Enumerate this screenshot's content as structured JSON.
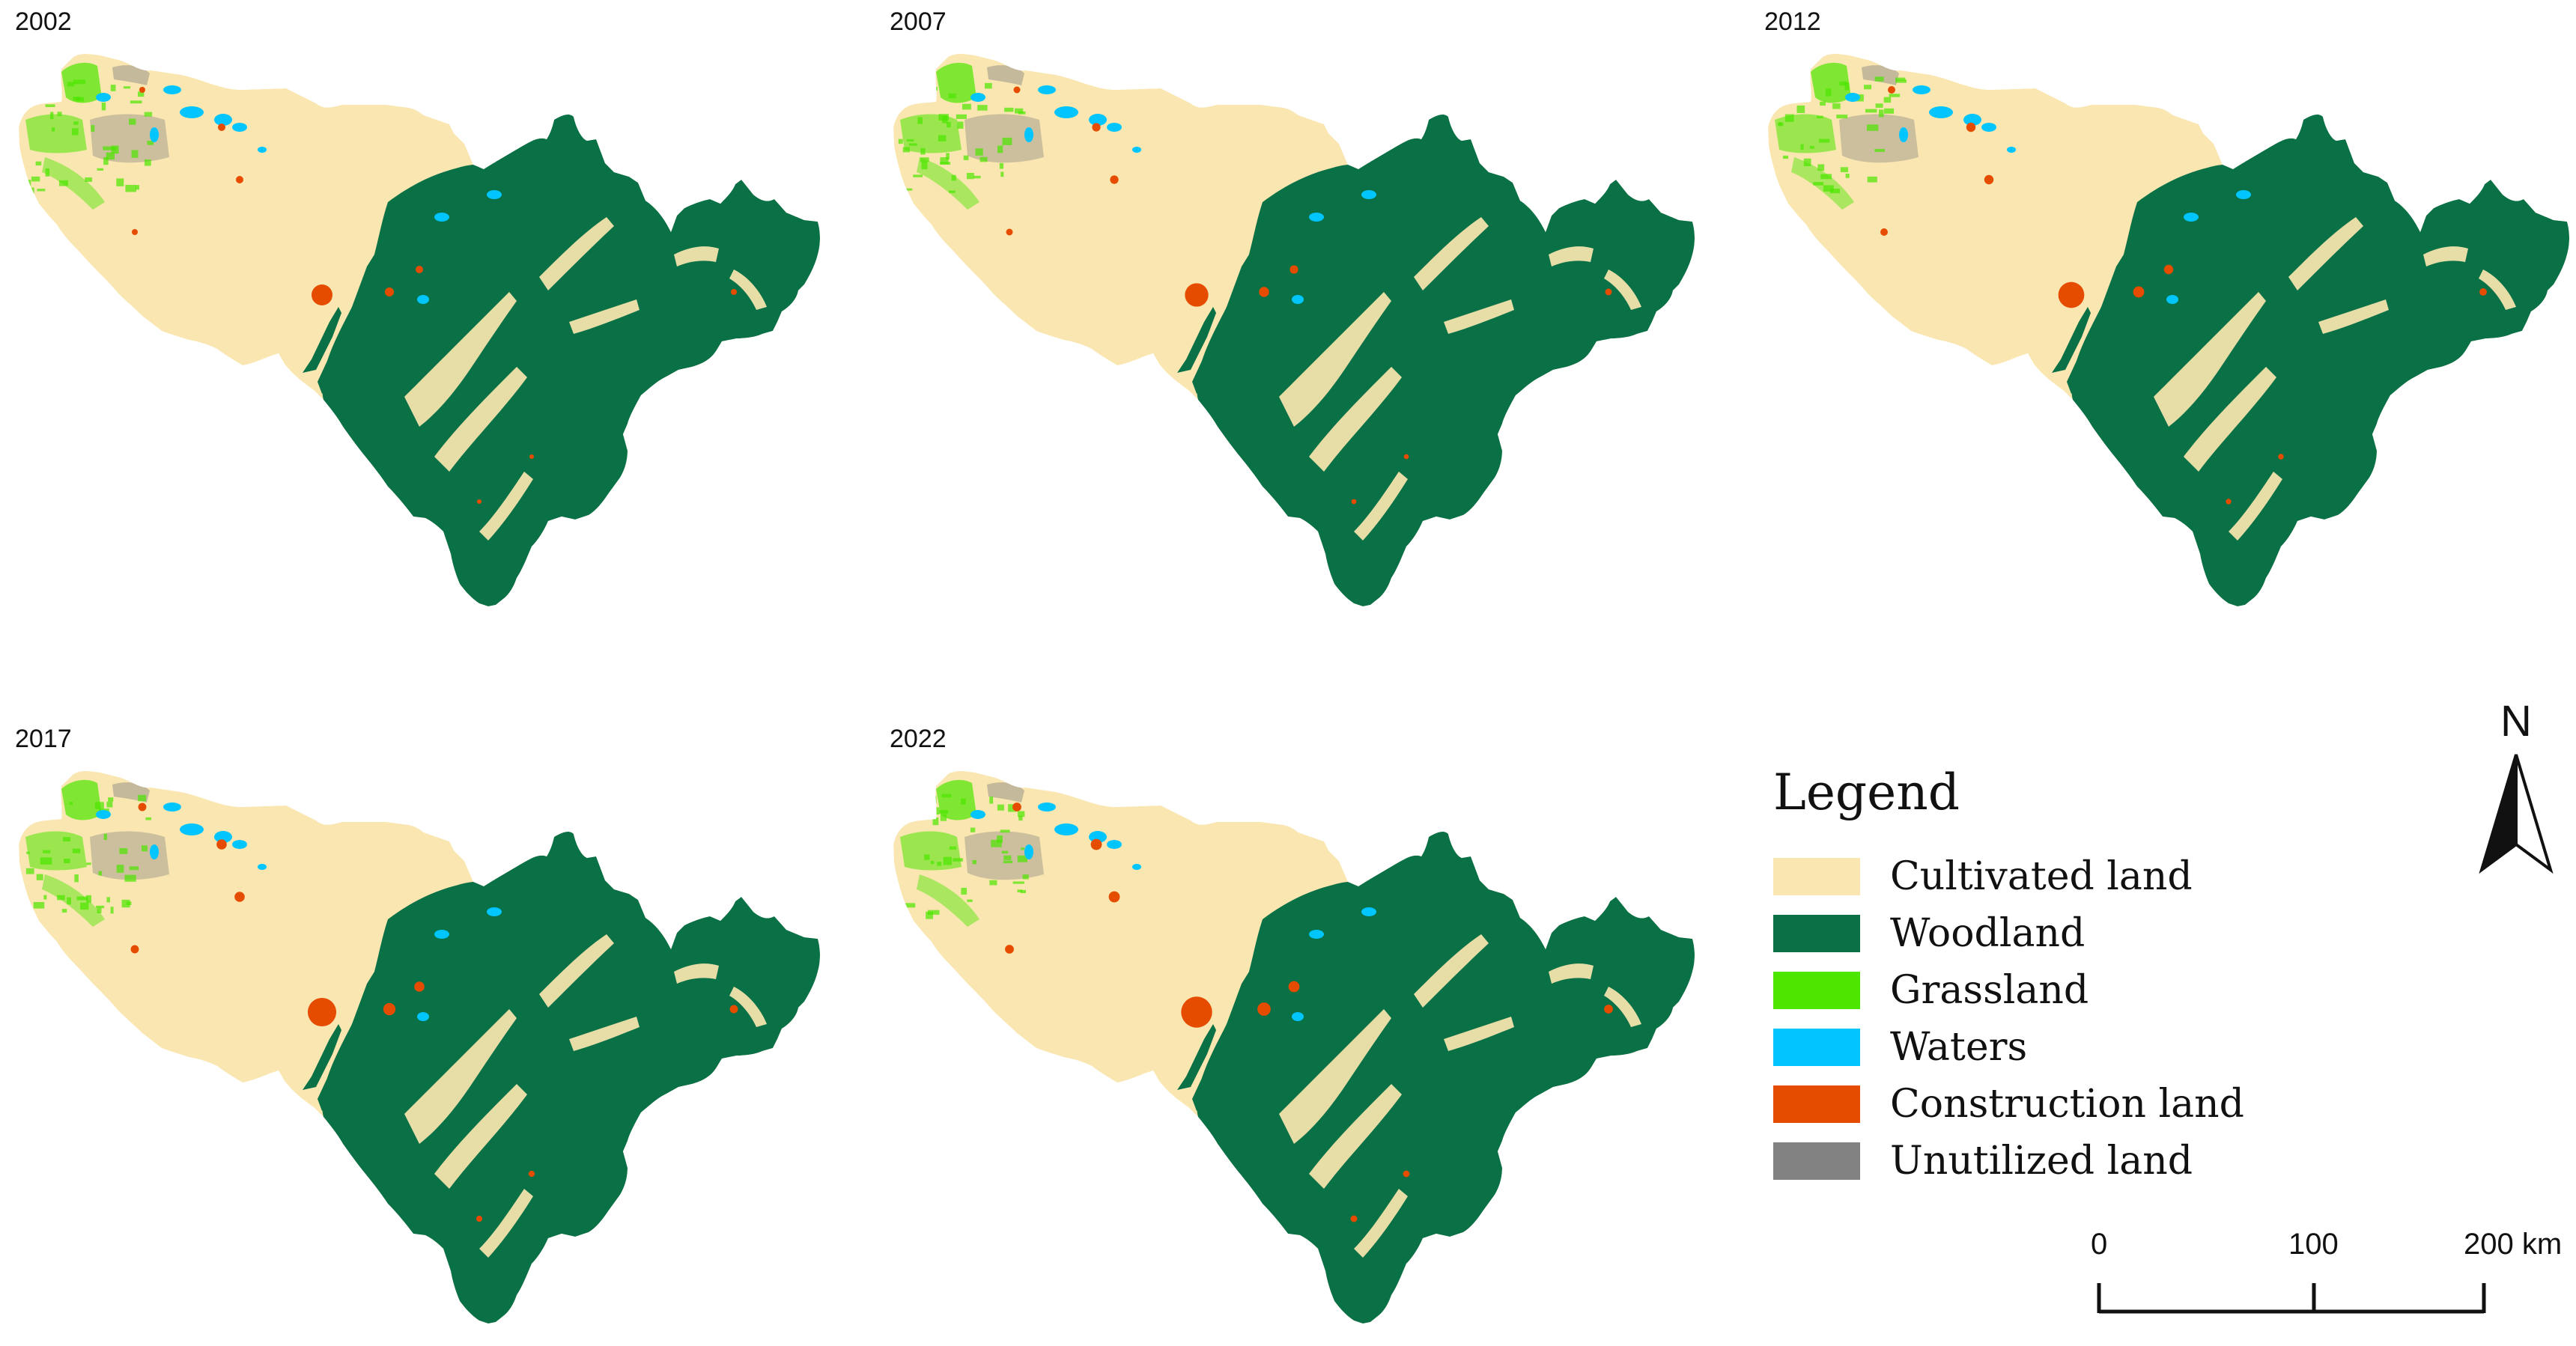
{
  "maps": [
    {
      "year": "2002"
    },
    {
      "year": "2007"
    },
    {
      "year": "2012"
    },
    {
      "year": "2017"
    },
    {
      "year": "2022"
    }
  ],
  "colors": {
    "cultivated": "#fae6b0",
    "woodland": "#0a7046",
    "grassland": "#4ce600",
    "waters": "#00c5ff",
    "construction": "#e64c00",
    "unutilized": "#828282"
  },
  "legend": {
    "title": "Legend",
    "items": [
      {
        "label": "Cultivated land",
        "color": "#fae6b0"
      },
      {
        "label": "Woodland",
        "color": "#0a7046"
      },
      {
        "label": "Grassland",
        "color": "#4ce600"
      },
      {
        "label": "Waters",
        "color": "#00c5ff"
      },
      {
        "label": "Construction land",
        "color": "#e64c00"
      },
      {
        "label": "Unutilized land",
        "color": "#828282"
      }
    ]
  },
  "north_arrow": {
    "label": "N"
  },
  "scale_bar": {
    "ticks": [
      "0",
      "100",
      "200 km"
    ]
  }
}
